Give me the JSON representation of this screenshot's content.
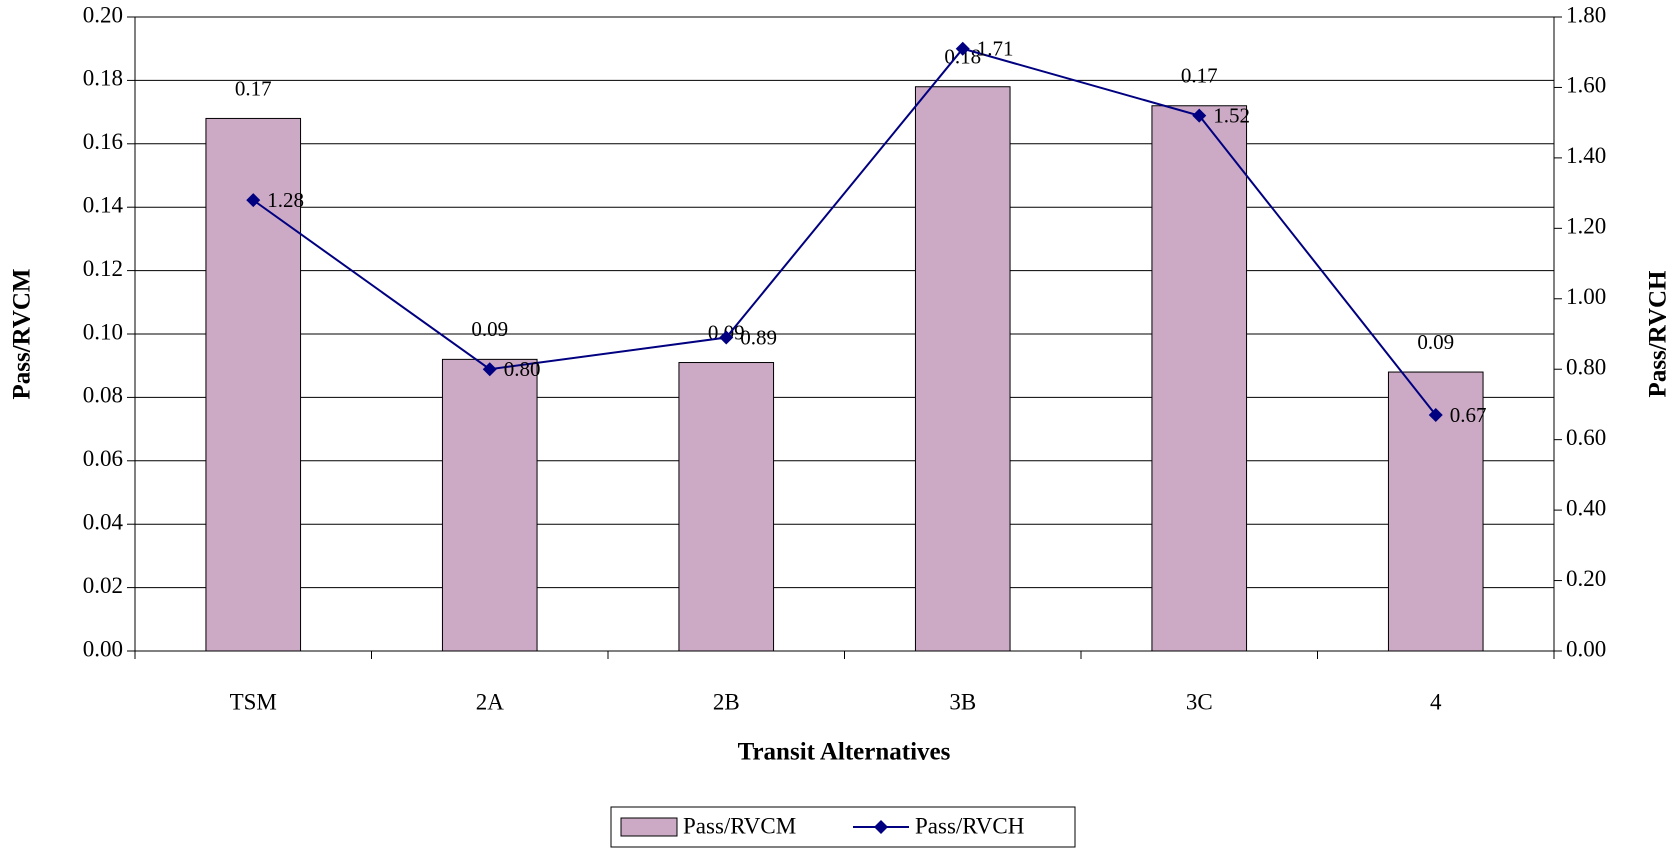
{
  "chart_data": {
    "type": "bar_line",
    "x_label": "Transit Alternatives",
    "y_label": "Pass/RVCM",
    "y2_label": "Pass/RVCH",
    "categories": [
      "TSM",
      "2A",
      "2B",
      "3B",
      "3C",
      "4"
    ],
    "series": [
      {
        "name": "Pass/RVCM",
        "type": "bar",
        "color": "#ccaac5",
        "values": [
          0.168,
          0.092,
          0.091,
          0.178,
          0.172,
          0.088
        ],
        "value_labels": [
          "0.17",
          "0.09",
          "0.09",
          "0.18",
          "0.17",
          "0.09"
        ]
      },
      {
        "name": "Pass/RVCH",
        "type": "line",
        "axis": "y2",
        "color": "#000080",
        "values": [
          1.28,
          0.8,
          0.89,
          1.71,
          1.52,
          0.67
        ],
        "value_labels": [
          "1.28",
          "0.80",
          "0.89",
          "1.71",
          "1.52",
          "0.67"
        ]
      }
    ],
    "ylim": [
      0,
      0.2
    ],
    "yticks": [
      {
        "value": 0,
        "label": "0.00"
      },
      {
        "value": 0.02,
        "label": "0.02"
      },
      {
        "value": 0.04,
        "label": "0.04"
      },
      {
        "value": 0.06,
        "label": "0.06"
      },
      {
        "value": 0.08,
        "label": "0.08"
      },
      {
        "value": 0.1,
        "label": "0.10"
      },
      {
        "value": 0.12,
        "label": "0.12"
      },
      {
        "value": 0.14,
        "label": "0.14"
      },
      {
        "value": 0.16,
        "label": "0.16"
      },
      {
        "value": 0.18,
        "label": "0.18"
      },
      {
        "value": 0.2,
        "label": "0.20"
      }
    ],
    "y2lim": [
      0,
      1.8
    ],
    "y2ticks": [
      {
        "value": 0,
        "label": "0.00"
      },
      {
        "value": 0.2,
        "label": "0.20"
      },
      {
        "value": 0.4,
        "label": "0.40"
      },
      {
        "value": 0.6,
        "label": "0.60"
      },
      {
        "value": 0.8,
        "label": "0.80"
      },
      {
        "value": 1.0,
        "label": "1.00"
      },
      {
        "value": 1.2,
        "label": "1.20"
      },
      {
        "value": 1.4,
        "label": "1.40"
      },
      {
        "value": 1.6,
        "label": "1.60"
      },
      {
        "value": 1.8,
        "label": "1.80"
      }
    ],
    "grid": true
  }
}
